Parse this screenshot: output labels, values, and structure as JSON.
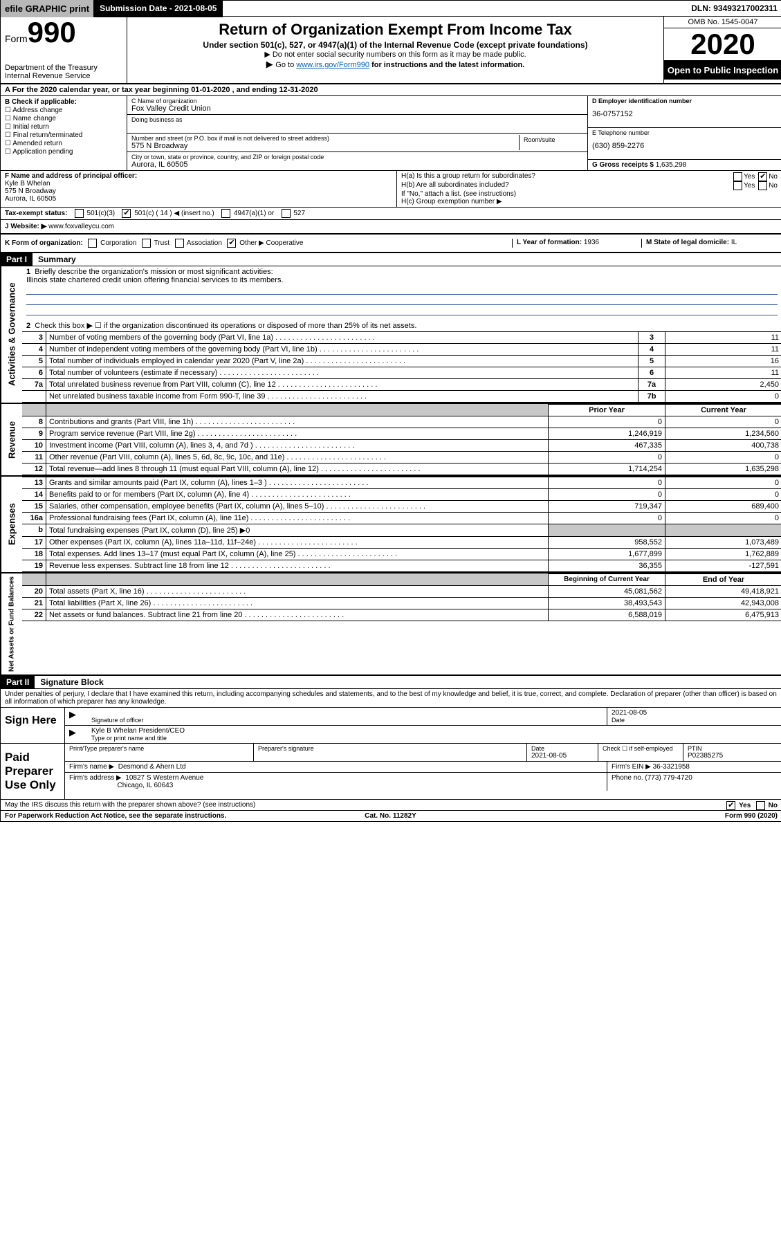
{
  "topbar": {
    "efile": "efile GRAPHIC print",
    "submission": "Submission Date - 2021-08-05",
    "dln": "DLN: 93493217002311"
  },
  "header": {
    "form_label": "Form",
    "form_num": "990",
    "dept": "Department of the Treasury Internal Revenue Service",
    "title": "Return of Organization Exempt From Income Tax",
    "subtitle1": "Under section 501(c), 527, or 4947(a)(1) of the Internal Revenue Code (except private foundations)",
    "subtitle2": "Do not enter social security numbers on this form as it may be made public.",
    "subtitle3_pre": "Go to ",
    "subtitle3_link": "www.irs.gov/Form990",
    "subtitle3_post": " for instructions and the latest information.",
    "omb": "OMB No. 1545-0047",
    "year": "2020",
    "inspection": "Open to Public Inspection"
  },
  "rowA": "A For the 2020 calendar year, or tax year beginning 01-01-2020   , and ending 12-31-2020",
  "colB": {
    "head": "B Check if applicable:",
    "items": [
      "Address change",
      "Name change",
      "Initial return",
      "Final return/terminated",
      "Amended return",
      "Application pending"
    ]
  },
  "boxC": {
    "label": "C Name of organization",
    "val": "Fox Valley Credit Union",
    "dba_label": "Doing business as",
    "street_label": "Number and street (or P.O. box if mail is not delivered to street address)",
    "street": "575 N Broadway",
    "suite_label": "Room/suite",
    "city_label": "City or town, state or province, country, and ZIP or foreign postal code",
    "city": "Aurora, IL  60505"
  },
  "boxD": {
    "label": "D Employer identification number",
    "val": "36-0757152"
  },
  "boxE": {
    "label": "E Telephone number",
    "val": "(630) 859-2276"
  },
  "boxG": {
    "label": "G Gross receipts $",
    "val": "1,635,298"
  },
  "boxF": {
    "label": "F Name and address of principal officer:",
    "name": "Kyle B Whelan",
    "street": "575 N Broadway",
    "city": "Aurora, IL  60505"
  },
  "boxH": {
    "a": "H(a)  Is this a group return for subordinates?",
    "b": "H(b)  Are all subordinates included?",
    "b_note": "If \"No,\" attach a list. (see instructions)",
    "c": "H(c)  Group exemption number ▶",
    "yes": "Yes",
    "no": "No"
  },
  "rowI": {
    "label": "Tax-exempt status:",
    "o1": "501(c)(3)",
    "o2": "501(c) ( 14 ) ◀ (insert no.)",
    "o3": "4947(a)(1) or",
    "o4": "527"
  },
  "rowJ": {
    "label": "J  Website: ▶",
    "val": "www.foxvalleycu.com"
  },
  "rowK": {
    "label": "K Form of organization:",
    "opts": [
      "Corporation",
      "Trust",
      "Association",
      "Other ▶"
    ],
    "other_val": "Cooperative",
    "L_label": "L Year of formation:",
    "L_val": "1936",
    "M_label": "M State of legal domicile:",
    "M_val": "IL"
  },
  "partI": {
    "header": "Part I",
    "title": "Summary"
  },
  "q1": {
    "num": "1",
    "text": "Briefly describe the organization's mission or most significant activities:",
    "val": "Illinois state chartered credit union offering financial services to its members."
  },
  "q2": {
    "num": "2",
    "text": "Check this box ▶ ☐  if the organization discontinued its operations or disposed of more than 25% of its net assets."
  },
  "governance_rows": [
    {
      "n": "3",
      "d": "Number of voting members of the governing body (Part VI, line 1a)",
      "b": "3",
      "v": "11"
    },
    {
      "n": "4",
      "d": "Number of independent voting members of the governing body (Part VI, line 1b)",
      "b": "4",
      "v": "11"
    },
    {
      "n": "5",
      "d": "Total number of individuals employed in calendar year 2020 (Part V, line 2a)",
      "b": "5",
      "v": "16"
    },
    {
      "n": "6",
      "d": "Total number of volunteers (estimate if necessary)",
      "b": "6",
      "v": "11"
    },
    {
      "n": "7a",
      "d": "Total unrelated business revenue from Part VIII, column (C), line 12",
      "b": "7a",
      "v": "2,450"
    },
    {
      "n": "",
      "d": "Net unrelated business taxable income from Form 990-T, line 39",
      "b": "7b",
      "v": "0"
    }
  ],
  "col_headers": {
    "prior": "Prior Year",
    "current": "Current Year",
    "beg": "Beginning of Current Year",
    "end": "End of Year"
  },
  "revenue_rows": [
    {
      "n": "8",
      "d": "Contributions and grants (Part VIII, line 1h)",
      "p": "0",
      "c": "0"
    },
    {
      "n": "9",
      "d": "Program service revenue (Part VIII, line 2g)",
      "p": "1,246,919",
      "c": "1,234,560"
    },
    {
      "n": "10",
      "d": "Investment income (Part VIII, column (A), lines 3, 4, and 7d )",
      "p": "467,335",
      "c": "400,738"
    },
    {
      "n": "11",
      "d": "Other revenue (Part VIII, column (A), lines 5, 6d, 8c, 9c, 10c, and 11e)",
      "p": "0",
      "c": "0"
    },
    {
      "n": "12",
      "d": "Total revenue—add lines 8 through 11 (must equal Part VIII, column (A), line 12)",
      "p": "1,714,254",
      "c": "1,635,298"
    }
  ],
  "expense_rows": [
    {
      "n": "13",
      "d": "Grants and similar amounts paid (Part IX, column (A), lines 1–3 )",
      "p": "0",
      "c": "0"
    },
    {
      "n": "14",
      "d": "Benefits paid to or for members (Part IX, column (A), line 4)",
      "p": "0",
      "c": "0"
    },
    {
      "n": "15",
      "d": "Salaries, other compensation, employee benefits (Part IX, column (A), lines 5–10)",
      "p": "719,347",
      "c": "689,400"
    },
    {
      "n": "16a",
      "d": "Professional fundraising fees (Part IX, column (A), line 11e)",
      "p": "0",
      "c": "0"
    },
    {
      "n": "b",
      "d": "Total fundraising expenses (Part IX, column (D), line 25) ▶0",
      "p": "",
      "c": "",
      "shade": true
    },
    {
      "n": "17",
      "d": "Other expenses (Part IX, column (A), lines 11a–11d, 11f–24e)",
      "p": "958,552",
      "c": "1,073,489"
    },
    {
      "n": "18",
      "d": "Total expenses. Add lines 13–17 (must equal Part IX, column (A), line 25)",
      "p": "1,677,899",
      "c": "1,762,889"
    },
    {
      "n": "19",
      "d": "Revenue less expenses. Subtract line 18 from line 12",
      "p": "36,355",
      "c": "-127,591"
    }
  ],
  "net_rows": [
    {
      "n": "20",
      "d": "Total assets (Part X, line 16)",
      "p": "45,081,562",
      "c": "49,418,921"
    },
    {
      "n": "21",
      "d": "Total liabilities (Part X, line 26)",
      "p": "38,493,543",
      "c": "42,943,008"
    },
    {
      "n": "22",
      "d": "Net assets or fund balances. Subtract line 21 from line 20",
      "p": "6,588,019",
      "c": "6,475,913"
    }
  ],
  "side_labels": {
    "gov": "Activities & Governance",
    "rev": "Revenue",
    "exp": "Expenses",
    "net": "Net Assets or Fund Balances"
  },
  "partII": {
    "header": "Part II",
    "title": "Signature Block"
  },
  "perjury": "Under penalties of perjury, I declare that I have examined this return, including accompanying schedules and statements, and to the best of my knowledge and belief, it is true, correct, and complete. Declaration of preparer (other than officer) is based on all information of which preparer has any knowledge.",
  "sign": {
    "here": "Sign Here",
    "sig_officer": "Signature of officer",
    "date": "2021-08-05",
    "date_label": "Date",
    "name": "Kyle B Whelan  President/CEO",
    "name_label": "Type or print name and title"
  },
  "paid": {
    "label": "Paid Preparer Use Only",
    "prep_name_label": "Print/Type preparer's name",
    "prep_sig_label": "Preparer's signature",
    "date_label": "Date",
    "date": "2021-08-05",
    "self_emp": "Check ☐ if self-employed",
    "ptin_label": "PTIN",
    "ptin": "P02385275",
    "firm_name_label": "Firm's name    ▶",
    "firm_name": "Desmond & Ahern Ltd",
    "firm_ein_label": "Firm's EIN ▶",
    "firm_ein": "36-3321958",
    "firm_addr_label": "Firm's address ▶",
    "firm_addr1": "10827 S Western Avenue",
    "firm_addr2": "Chicago, IL  60643",
    "phone_label": "Phone no.",
    "phone": "(773) 779-4720"
  },
  "discuss": "May the IRS discuss this return with the preparer shown above? (see instructions)",
  "footer": {
    "left": "For Paperwork Reduction Act Notice, see the separate instructions.",
    "mid": "Cat. No. 11282Y",
    "right": "Form 990 (2020)"
  }
}
